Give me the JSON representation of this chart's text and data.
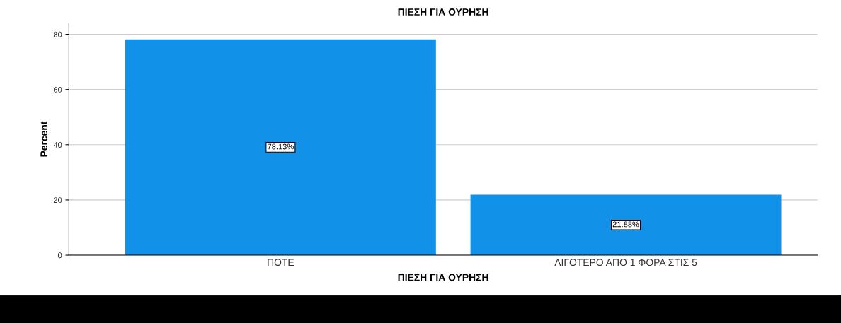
{
  "chart_data": {
    "type": "bar",
    "title": "ΠΙΕΣΗ ΓΙΑ ΟΥΡΗΣΗ",
    "xlabel": "ΠΙΕΣΗ ΓΙΑ ΟΥΡΗΣΗ",
    "ylabel": "Percent",
    "categories": [
      "ΠΟΤΕ",
      "ΛΙΓΟΤΕΡΟ ΑΠΟ 1 ΦΟΡΑ ΣΤΙΣ 5"
    ],
    "values": [
      78.13,
      21.88
    ],
    "value_labels": [
      "78.13%",
      "21.88%"
    ],
    "color": "#1192e8",
    "ylim": [
      0,
      84
    ],
    "yticks": [
      0,
      20,
      40,
      60,
      80
    ],
    "grid": "y",
    "legend": false
  }
}
